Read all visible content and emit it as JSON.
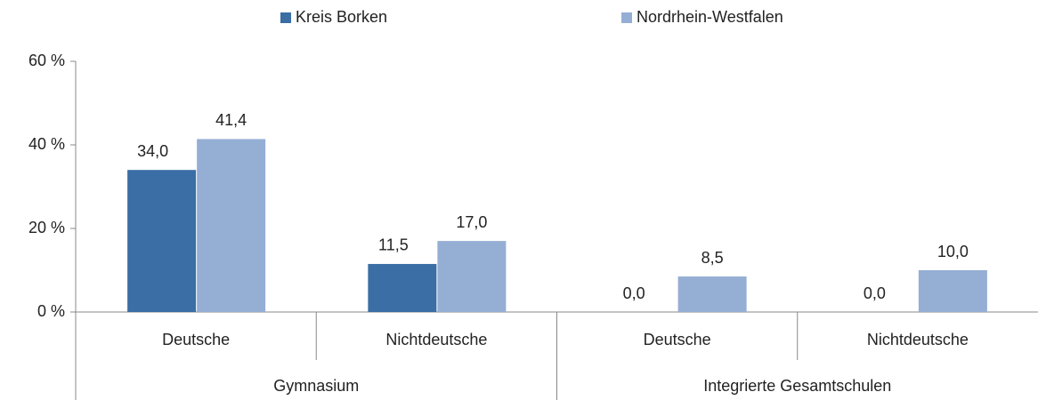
{
  "chart_data": {
    "type": "bar",
    "groups": [
      {
        "name": "Gymnasium",
        "categories": [
          "Deutsche",
          "Nichtdeutsche"
        ]
      },
      {
        "name": "Integrierte Gesamtschulen",
        "categories": [
          "Deutsche",
          "Nichtdeutsche"
        ]
      }
    ],
    "series": [
      {
        "name": "Kreis Borken",
        "color": "#3a6ea5",
        "values": [
          34.0,
          11.5,
          0.0,
          0.0
        ],
        "value_labels": [
          "34,0",
          "11,5",
          "0,0",
          "0,0"
        ]
      },
      {
        "name": "Nordrhein-Westfalen",
        "color": "#95aed4",
        "values": [
          41.4,
          17.0,
          8.5,
          10.0
        ],
        "value_labels": [
          "41,4",
          "17,0",
          "8,5",
          "10,0"
        ]
      }
    ],
    "ylim": [
      0,
      60
    ],
    "yticks": [
      {
        "value": 0,
        "label": "0 %"
      },
      {
        "value": 20,
        "label": "20 %"
      },
      {
        "value": 40,
        "label": "40 %"
      },
      {
        "value": 60,
        "label": "60 %"
      }
    ],
    "legend": "top"
  }
}
